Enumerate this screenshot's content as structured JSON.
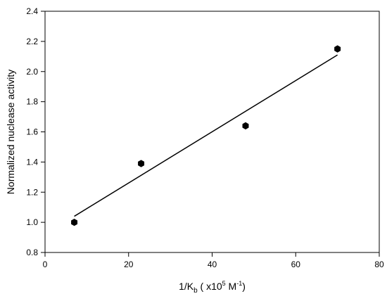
{
  "chart_data": {
    "type": "scatter",
    "xlabel": "1/K_b ( x10^5 M^-1)",
    "ylabel": "Normalized nuclease activity",
    "xlim": [
      0,
      80
    ],
    "ylim": [
      0.8,
      2.4
    ],
    "x_ticks": [
      "0",
      "20",
      "40",
      "60",
      "80"
    ],
    "y_ticks": [
      "0.8",
      "1.0",
      "1.2",
      "1.4",
      "1.6",
      "1.8",
      "2.0",
      "2.2",
      "2.4"
    ],
    "series": [
      {
        "marker": "hexagon",
        "color": "#000000",
        "points": [
          {
            "x": 7,
            "y": 1.0
          },
          {
            "x": 23,
            "y": 1.39
          },
          {
            "x": 48,
            "y": 1.64
          },
          {
            "x": 70,
            "y": 2.15
          }
        ]
      }
    ],
    "fit_line": {
      "x1": 7,
      "y1": 1.04,
      "x2": 70,
      "y2": 2.11
    },
    "xlabel_parts": {
      "pre": "1/K",
      "sub": "b",
      "mid": " ( x10",
      "sup1": "5",
      "mid2": " M",
      "sup2": "-1",
      "post": ")"
    },
    "grid": false,
    "legend": false
  }
}
